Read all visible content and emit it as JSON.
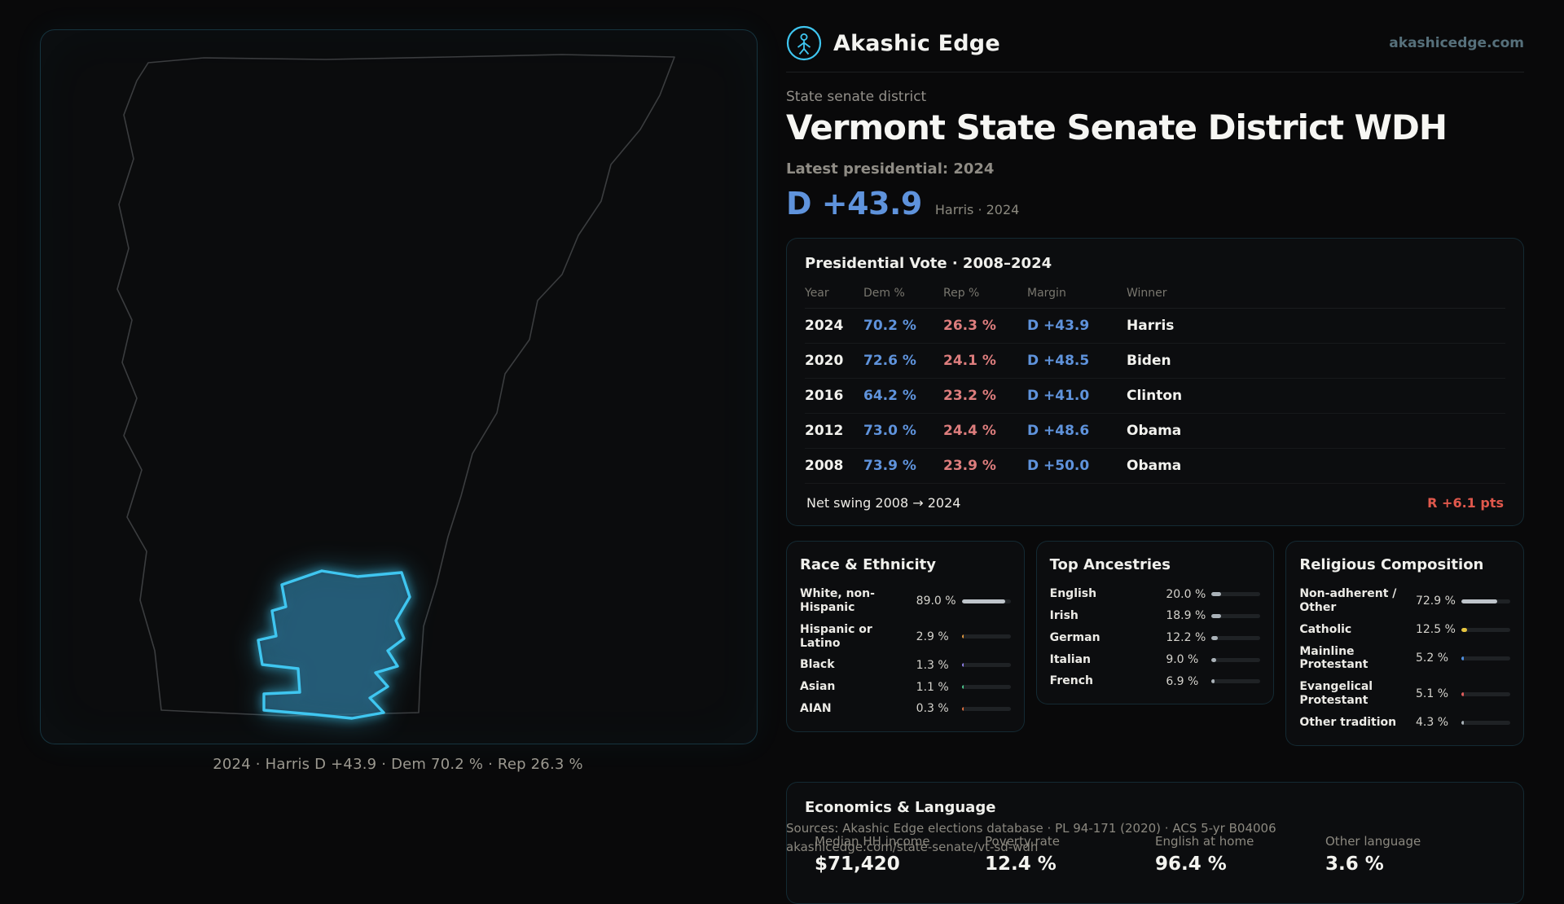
{
  "brand": {
    "name": "Akashic Edge",
    "domain": "akashicedge.com"
  },
  "map": {
    "caption": "2024 · Harris D +43.9 · Dem 70.2 % · Rep 26.3 %"
  },
  "hero": {
    "eyebrow": "State senate district",
    "title": "Vermont State Senate District WDH",
    "latest_label": "Latest presidential: 2024",
    "margin": "D +43.9",
    "margin_note": "Harris · 2024"
  },
  "presidential": {
    "title": "Presidential Vote · 2008–2024",
    "columns": [
      "Year",
      "Dem %",
      "Rep %",
      "Margin",
      "Winner"
    ],
    "rows": [
      {
        "year": "2024",
        "dem": "70.2 %",
        "rep": "26.3 %",
        "margin": "D +43.9",
        "winner": "Harris"
      },
      {
        "year": "2020",
        "dem": "72.6 %",
        "rep": "24.1 %",
        "margin": "D +48.5",
        "winner": "Biden"
      },
      {
        "year": "2016",
        "dem": "64.2 %",
        "rep": "23.2 %",
        "margin": "D +41.0",
        "winner": "Clinton"
      },
      {
        "year": "2012",
        "dem": "73.0 %",
        "rep": "24.4 %",
        "margin": "D +48.6",
        "winner": "Obama"
      },
      {
        "year": "2008",
        "dem": "73.9 %",
        "rep": "23.9 %",
        "margin": "D +50.0",
        "winner": "Obama"
      }
    ],
    "net_swing_label": "Net swing 2008 → 2024",
    "net_swing_value": "R +6.1 pts"
  },
  "race": {
    "title": "Race & Ethnicity",
    "rows": [
      {
        "label": "White, non-Hispanic",
        "value": "89.0 %",
        "pct": 89,
        "color": "#bfc5cb"
      },
      {
        "label": "Hispanic or Latino",
        "value": "2.9 %",
        "pct": 2.9,
        "color": "#e0973f"
      },
      {
        "label": "Black",
        "value": "1.3 %",
        "pct": 1.3,
        "color": "#8f7fe8"
      },
      {
        "label": "Asian",
        "value": "1.1 %",
        "pct": 1.1,
        "color": "#4bc98f"
      },
      {
        "label": "AIAN",
        "value": "0.3 %",
        "pct": 0.3,
        "color": "#e0703f"
      }
    ]
  },
  "ancestries": {
    "title": "Top Ancestries",
    "rows": [
      {
        "label": "English",
        "value": "20.0 %",
        "pct": 20,
        "color": "#aab2b8"
      },
      {
        "label": "Irish",
        "value": "18.9 %",
        "pct": 18.9,
        "color": "#aab2b8"
      },
      {
        "label": "German",
        "value": "12.2 %",
        "pct": 12.2,
        "color": "#aab2b8"
      },
      {
        "label": "Italian",
        "value": "9.0 %",
        "pct": 9,
        "color": "#aab2b8"
      },
      {
        "label": "French",
        "value": "6.9 %",
        "pct": 6.9,
        "color": "#aab2b8"
      }
    ]
  },
  "religion": {
    "title": "Religious Composition",
    "rows": [
      {
        "label": "Non-adherent / Other",
        "value": "72.9 %",
        "pct": 72.9,
        "color": "#bfc5cb"
      },
      {
        "label": "Catholic",
        "value": "12.5 %",
        "pct": 12.5,
        "color": "#e6c53f"
      },
      {
        "label": "Mainline Protestant",
        "value": "5.2 %",
        "pct": 5.2,
        "color": "#4f8fe0"
      },
      {
        "label": "Evangelical Protestant",
        "value": "5.1 %",
        "pct": 5.1,
        "color": "#e05c5c"
      },
      {
        "label": "Other tradition",
        "value": "4.3 %",
        "pct": 4.3,
        "color": "#aab2b8"
      }
    ]
  },
  "economics": {
    "title": "Economics & Language",
    "stats": [
      {
        "label": "Median HH income",
        "value": "$71,420"
      },
      {
        "label": "Poverty rate",
        "value": "12.4 %"
      },
      {
        "label": "English at home",
        "value": "96.4 %"
      },
      {
        "label": "Other language",
        "value": "3.6 %"
      }
    ]
  },
  "footer": {
    "sources": "Sources: Akashic Edge elections database · PL 94-171 (2020) · ACS 5-yr B04006",
    "permalink": "akashicedge.com/state-senate/vt-sd-wdh"
  },
  "colors": {
    "accent_teal": "#3fc6f0",
    "dem_blue": "#5f93dc",
    "rep_red": "#dd7d7d",
    "swing_red": "#e0584c",
    "muted_text": "#8b887f"
  }
}
